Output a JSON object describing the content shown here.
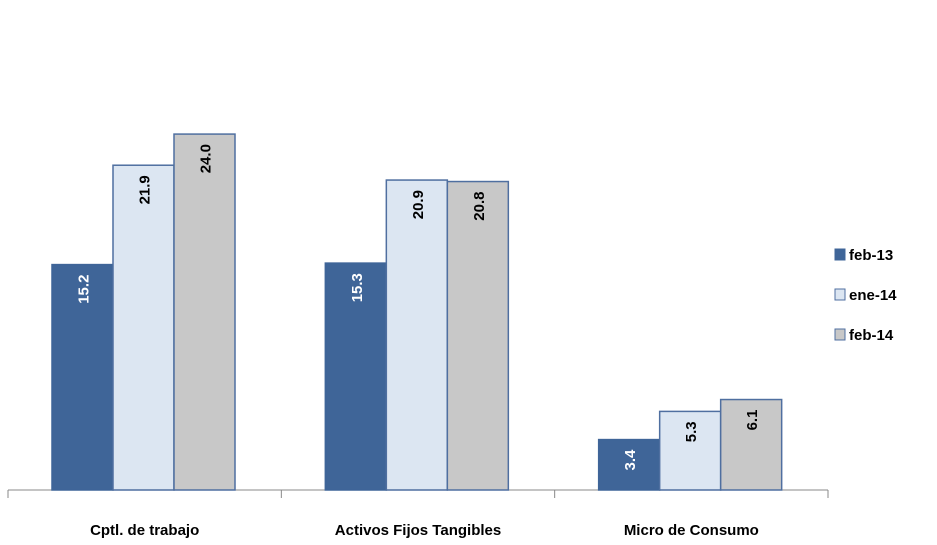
{
  "chart_data": {
    "type": "bar",
    "categories": [
      "Cptl. de trabajo",
      "Activos Fijos  Tangibles",
      "Micro de Consumo"
    ],
    "series": [
      {
        "name": "feb-13",
        "color": "#3f6598",
        "values": [
          15.2,
          15.3,
          3.4
        ],
        "value_labels": [
          "15.2",
          "15.3",
          "3.4"
        ]
      },
      {
        "name": "ene-14",
        "color": "#dce6f2",
        "values": [
          21.9,
          20.9,
          5.3
        ],
        "value_labels": [
          "21.9",
          "20.9",
          "5.3"
        ]
      },
      {
        "name": "feb-14",
        "color": "#c8c8c8",
        "values": [
          24.0,
          20.8,
          6.1
        ],
        "value_labels": [
          "24.0",
          "20.8",
          "6.1"
        ]
      }
    ],
    "legend": "right"
  }
}
